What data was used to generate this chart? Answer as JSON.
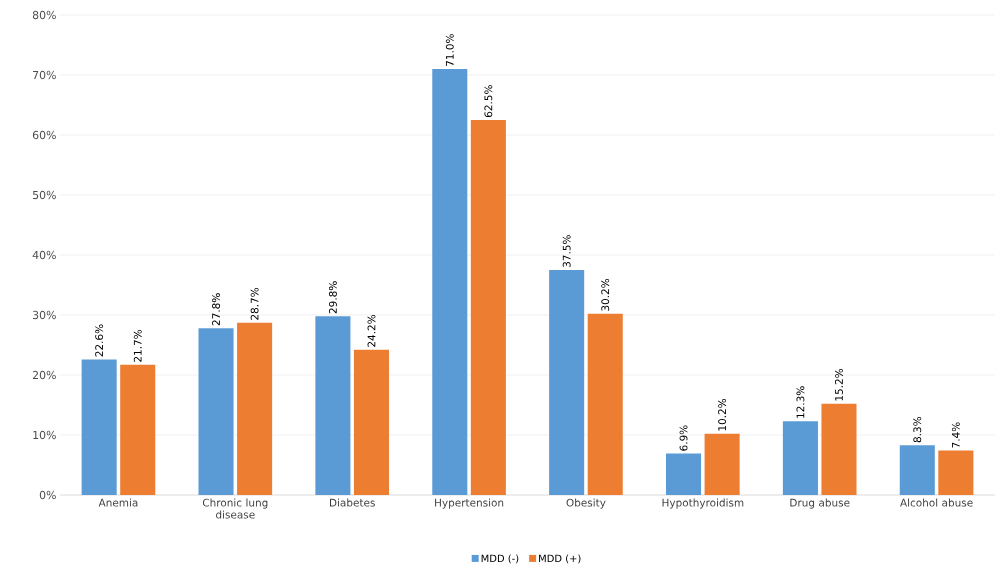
{
  "chart_data": {
    "type": "bar",
    "categories": [
      "Anemia",
      "Chronic lung disease",
      "Diabetes",
      "Hypertension",
      "Obesity",
      "Hypothyroidism",
      "Drug abuse",
      "Alcohol abuse"
    ],
    "series": [
      {
        "name": "MDD (-)",
        "color": "#5b9bd5",
        "values": [
          22.6,
          27.8,
          29.8,
          71.0,
          37.5,
          6.9,
          12.3,
          8.3
        ],
        "value_labels": [
          "22.6%",
          "27.8%",
          "29.8%",
          "71.0%",
          "37.5%",
          "6.9%",
          "12.3%",
          "8.3%"
        ]
      },
      {
        "name": "MDD (+)",
        "color": "#ed7d31",
        "values": [
          21.7,
          28.7,
          24.2,
          62.5,
          30.2,
          10.2,
          15.2,
          7.4
        ],
        "value_labels": [
          "21.7%",
          "28.7%",
          "24.2%",
          "62.5%",
          "30.2%",
          "10.2%",
          "15.2%",
          "7.4%"
        ]
      }
    ],
    "ylim": [
      0,
      80
    ],
    "yticks": [
      {
        "value": 0,
        "label": "0%"
      },
      {
        "value": 10,
        "label": "10%"
      },
      {
        "value": 20,
        "label": "20%"
      },
      {
        "value": 30,
        "label": "30%"
      },
      {
        "value": 40,
        "label": "40%"
      },
      {
        "value": 50,
        "label": "50%"
      },
      {
        "value": 60,
        "label": "60%"
      },
      {
        "value": 70,
        "label": "70%"
      },
      {
        "value": 80,
        "label": "80%"
      }
    ],
    "grid": "y",
    "legend": "bottom"
  }
}
